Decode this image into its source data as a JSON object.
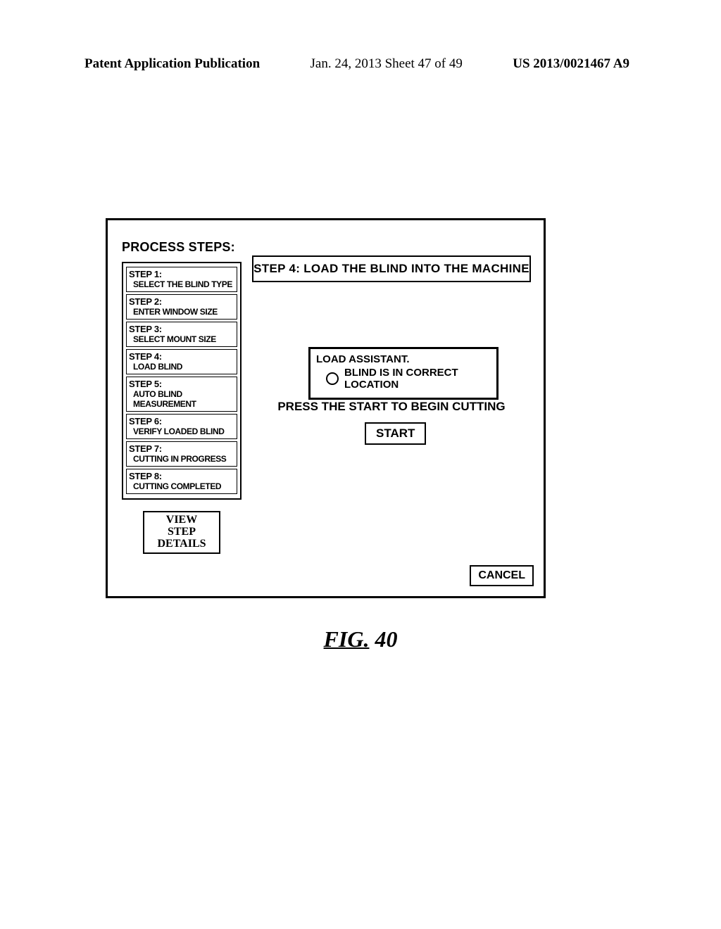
{
  "header": {
    "left": "Patent Application Publication",
    "center": "Jan. 24, 2013  Sheet 47 of 49",
    "right": "US 2013/0021467 A9"
  },
  "sidebar": {
    "title": "PROCESS STEPS:",
    "steps": [
      {
        "num": "STEP 1:",
        "label": "SELECT THE BLIND TYPE"
      },
      {
        "num": "STEP 2:",
        "label": "ENTER WINDOW SIZE"
      },
      {
        "num": "STEP 3:",
        "label": "SELECT MOUNT SIZE"
      },
      {
        "num": "STEP 4:",
        "label": "LOAD BLIND"
      },
      {
        "num": "STEP 5:",
        "label": "AUTO BLIND MEASUREMENT"
      },
      {
        "num": "STEP 6:",
        "label": "VERIFY LOADED BLIND"
      },
      {
        "num": "STEP 7:",
        "label": "CUTTING IN PROGRESS"
      },
      {
        "num": "STEP 8:",
        "label": "CUTTING COMPLETED"
      }
    ],
    "view_line1": "VIEW",
    "view_line2": "STEP DETAILS"
  },
  "main": {
    "title": "STEP 4: LOAD THE BLIND INTO THE MACHINE",
    "assistant_l1": "LOAD ASSISTANT.",
    "assistant_l2": "BLIND IS IN CORRECT LOCATION",
    "instruction": "PRESS THE START TO BEGIN CUTTING",
    "start": "START",
    "cancel": "CANCEL"
  },
  "figure": {
    "label_prefix": "FIG.",
    "label_num": "40"
  }
}
